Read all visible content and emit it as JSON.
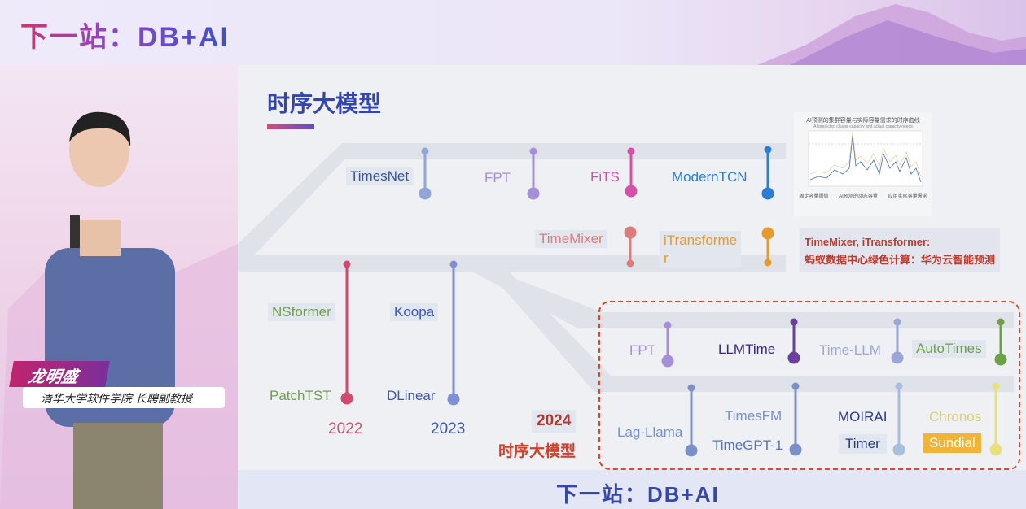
{
  "banner": {
    "logo": "下一站：DB+AI"
  },
  "speaker": {
    "name": "龙明盛",
    "title": "清华大学软件学院 长聘副教授"
  },
  "slide": {
    "title": "时序大模型",
    "mini_chart": {
      "title": "AI预测的集群容量与实际容量需求的时序曲线",
      "subtitle": "AI predicted cluster capacity and actual capacity needs",
      "legend": [
        "固定容量阈值",
        "AI预测的动态容量",
        "应用实际容量需求"
      ]
    },
    "note": {
      "line1": "TimeMixer, iTransformer:",
      "line2": "蚂蚁数据中心绿色计算：华为云智能预测"
    },
    "models_row1": [
      {
        "name": "TimesNet",
        "color": "#2f55a4"
      },
      {
        "name": "FPT",
        "color": "#a58fd6"
      },
      {
        "name": "FiTS",
        "color": "#d64fa8"
      },
      {
        "name": "ModernTCN",
        "color": "#2a7fd4"
      }
    ],
    "models_row2": [
      {
        "name": "TimeMixer",
        "color": "#e07b7b"
      },
      {
        "name": "iTransformer",
        "line1": "iTransforme",
        "line2": "r",
        "color": "#e69a2a"
      }
    ],
    "models_2022": [
      {
        "name": "NSformer",
        "color": "#6ea04a"
      },
      {
        "name": "PatchTST",
        "color": "#6ea04a"
      }
    ],
    "models_2023": [
      {
        "name": "Koopa",
        "color": "#3b57b0"
      },
      {
        "name": "DLinear",
        "color": "#3b57b0"
      }
    ],
    "years": {
      "y2022": "2022",
      "y2023": "2023",
      "y2024": "2024",
      "label2024": "时序大模型"
    },
    "llm_row1": [
      {
        "name": "FPT",
        "color": "#a58fd6"
      },
      {
        "name": "LLMTime",
        "color": "#3b2a7a"
      },
      {
        "name": "Time-LLM",
        "color": "#9aa6d8"
      },
      {
        "name": "AutoTimes",
        "color": "#6ea04a"
      }
    ],
    "llm_row2": [
      {
        "name": "Lag-Llama",
        "color": "#7a90c8"
      },
      {
        "name": "TimesFM",
        "color": "#7a90c8"
      },
      {
        "name": "TimeGPT-1",
        "color": "#5a70b8"
      },
      {
        "name": "MOIRAI",
        "color": "#2a3a8a"
      },
      {
        "name": "Timer",
        "color": "#2a3a8a"
      },
      {
        "name": "Chronos",
        "color": "#d8d26a"
      },
      {
        "name": "Sundial",
        "color": "#ffffff",
        "bg": "#f0b43a"
      }
    ]
  },
  "footer": {
    "logo": "下一站：DB+AI"
  }
}
